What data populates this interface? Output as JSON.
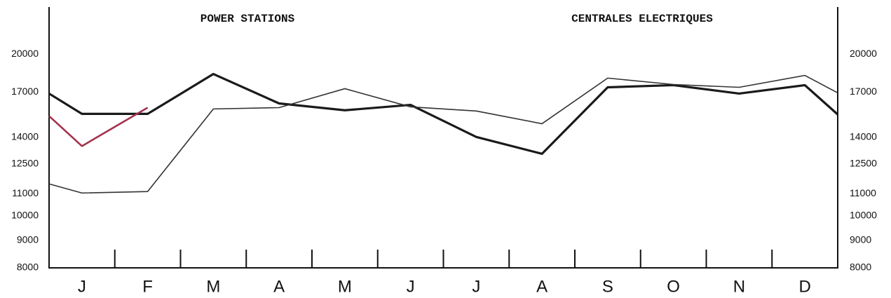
{
  "chart_data": {
    "type": "line",
    "title": "POWER STATIONS",
    "subtitle": "CENTRALES ELECTRIQUES",
    "categories": [
      null,
      "J",
      "F",
      "M",
      "A",
      "M",
      "J",
      "J",
      "A",
      "S",
      "O",
      "N",
      "D",
      null
    ],
    "series": [
      {
        "color": "#1a1a1a",
        "values": [
          16900,
          15490,
          15490,
          18380,
          16200,
          15730,
          16100,
          14030,
          13050,
          17360,
          17520,
          16900,
          17520,
          15450
        ]
      },
      {
        "color": "#333333",
        "values": [
          11470,
          11030,
          11100,
          15820,
          15910,
          17260,
          15960,
          15680,
          14850,
          18060,
          17570,
          17360,
          18270,
          16950
        ]
      },
      {
        "color": "#a3324d",
        "values": [
          15350,
          13490,
          15910,
          null,
          null,
          null,
          null,
          null,
          null,
          null,
          null,
          null,
          null,
          null
        ]
      }
    ],
    "log_scale": true,
    "ylim": [
      8000,
      24500
    ],
    "yticks": [
      8000,
      9000,
      10000,
      11000,
      12500,
      14000,
      17000,
      20000
    ]
  }
}
